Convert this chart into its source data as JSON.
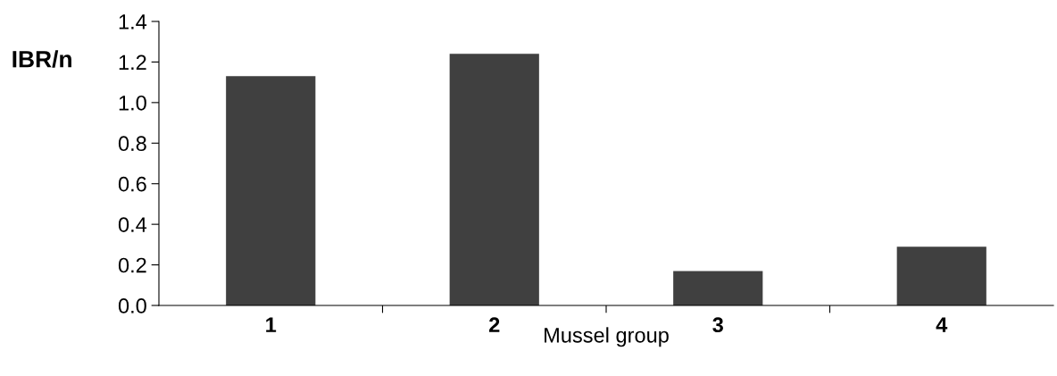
{
  "chart_data": {
    "type": "bar",
    "xlabel": "Mussel group",
    "ylabel": "IBR/n",
    "categories": [
      "1",
      "2",
      "3",
      "4"
    ],
    "values": [
      1.13,
      1.24,
      0.17,
      0.29
    ],
    "color": "#404040",
    "ylim": [
      0,
      1.4
    ],
    "yticks": [
      {
        "value": 0,
        "label": "0.0"
      },
      0.2,
      0.4,
      0.6,
      0.8,
      {
        "value": 1,
        "label": "1.0"
      },
      1.2,
      1.4
    ],
    "grid": false
  }
}
